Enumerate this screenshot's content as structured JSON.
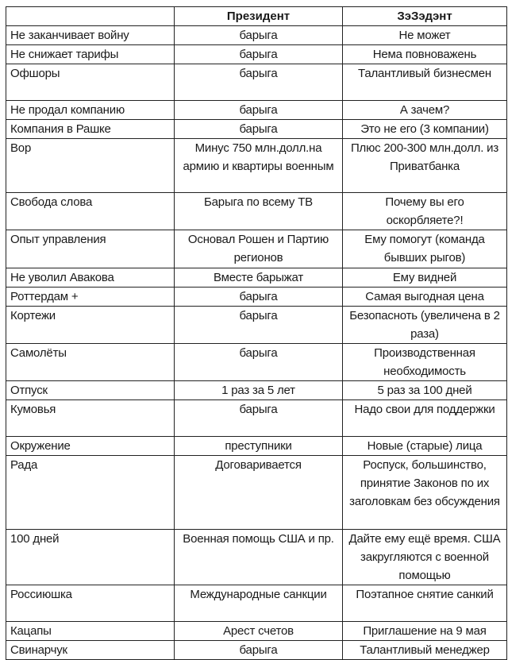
{
  "table": {
    "headers": [
      "",
      "Президент",
      "ЗэЗэдэнт"
    ],
    "rows": [
      [
        "Не заканчивает войну",
        "барыга",
        "Не может"
      ],
      [
        "Не снижает тарифы",
        "барыга",
        "Нема повноважень"
      ],
      [
        "Офшоры",
        "барыга",
        "Талантливый бизнесмен"
      ],
      [
        "Не продал компанию",
        "барыга",
        "А зачем?"
      ],
      [
        "Компания в Рашке",
        "барыга",
        "Это не его (3 компании)"
      ],
      [
        "Вор",
        "Минус 750 млн.долл.на армию и квартиры военным",
        "Плюс 200-300 млн.долл. из Приватбанка"
      ],
      [
        "Свобода слова",
        "Барыга по всему ТВ",
        "Почему вы его оскорбляете?!"
      ],
      [
        "Опыт управления",
        "Основал Рошен и Партию регионов",
        "Ему помогут (команда бывших рыгов)"
      ],
      [
        "Не уволил Авакова",
        "Вместе барыжат",
        "Ему видней"
      ],
      [
        "Роттердам +",
        "барыга",
        "Самая выгодная цена"
      ],
      [
        "Кортежи",
        "барыга",
        "Безопасноть (увеличена в 2 раза)"
      ],
      [
        "Самолёты",
        "барыга",
        "Производственная необходимость"
      ],
      [
        "Отпуск",
        "1 раз за 5 лет",
        "5 раз за 100 дней"
      ],
      [
        "Кумовья",
        "барыга",
        "Надо свои для поддержки"
      ],
      [
        "Окружение",
        "преступники",
        "Новые (старые) лица"
      ],
      [
        "Рада",
        "Договаривается",
        "Роспуск, большинство, принятие Законов по их заголовкам без обсуждения"
      ],
      [
        "100 дней",
        "Военная помощь США и пр.",
        "Дайте ему ещё время. США закругляются с военной помощью"
      ],
      [
        "Россиюшка",
        "Международные санкции",
        "Поэтапное снятие санкий"
      ],
      [
        "Кацапы",
        "Арест счетов",
        "Приглашение на 9 мая"
      ],
      [
        "Свинарчук",
        "барыга",
        "Талантливый менеджер"
      ]
    ]
  }
}
